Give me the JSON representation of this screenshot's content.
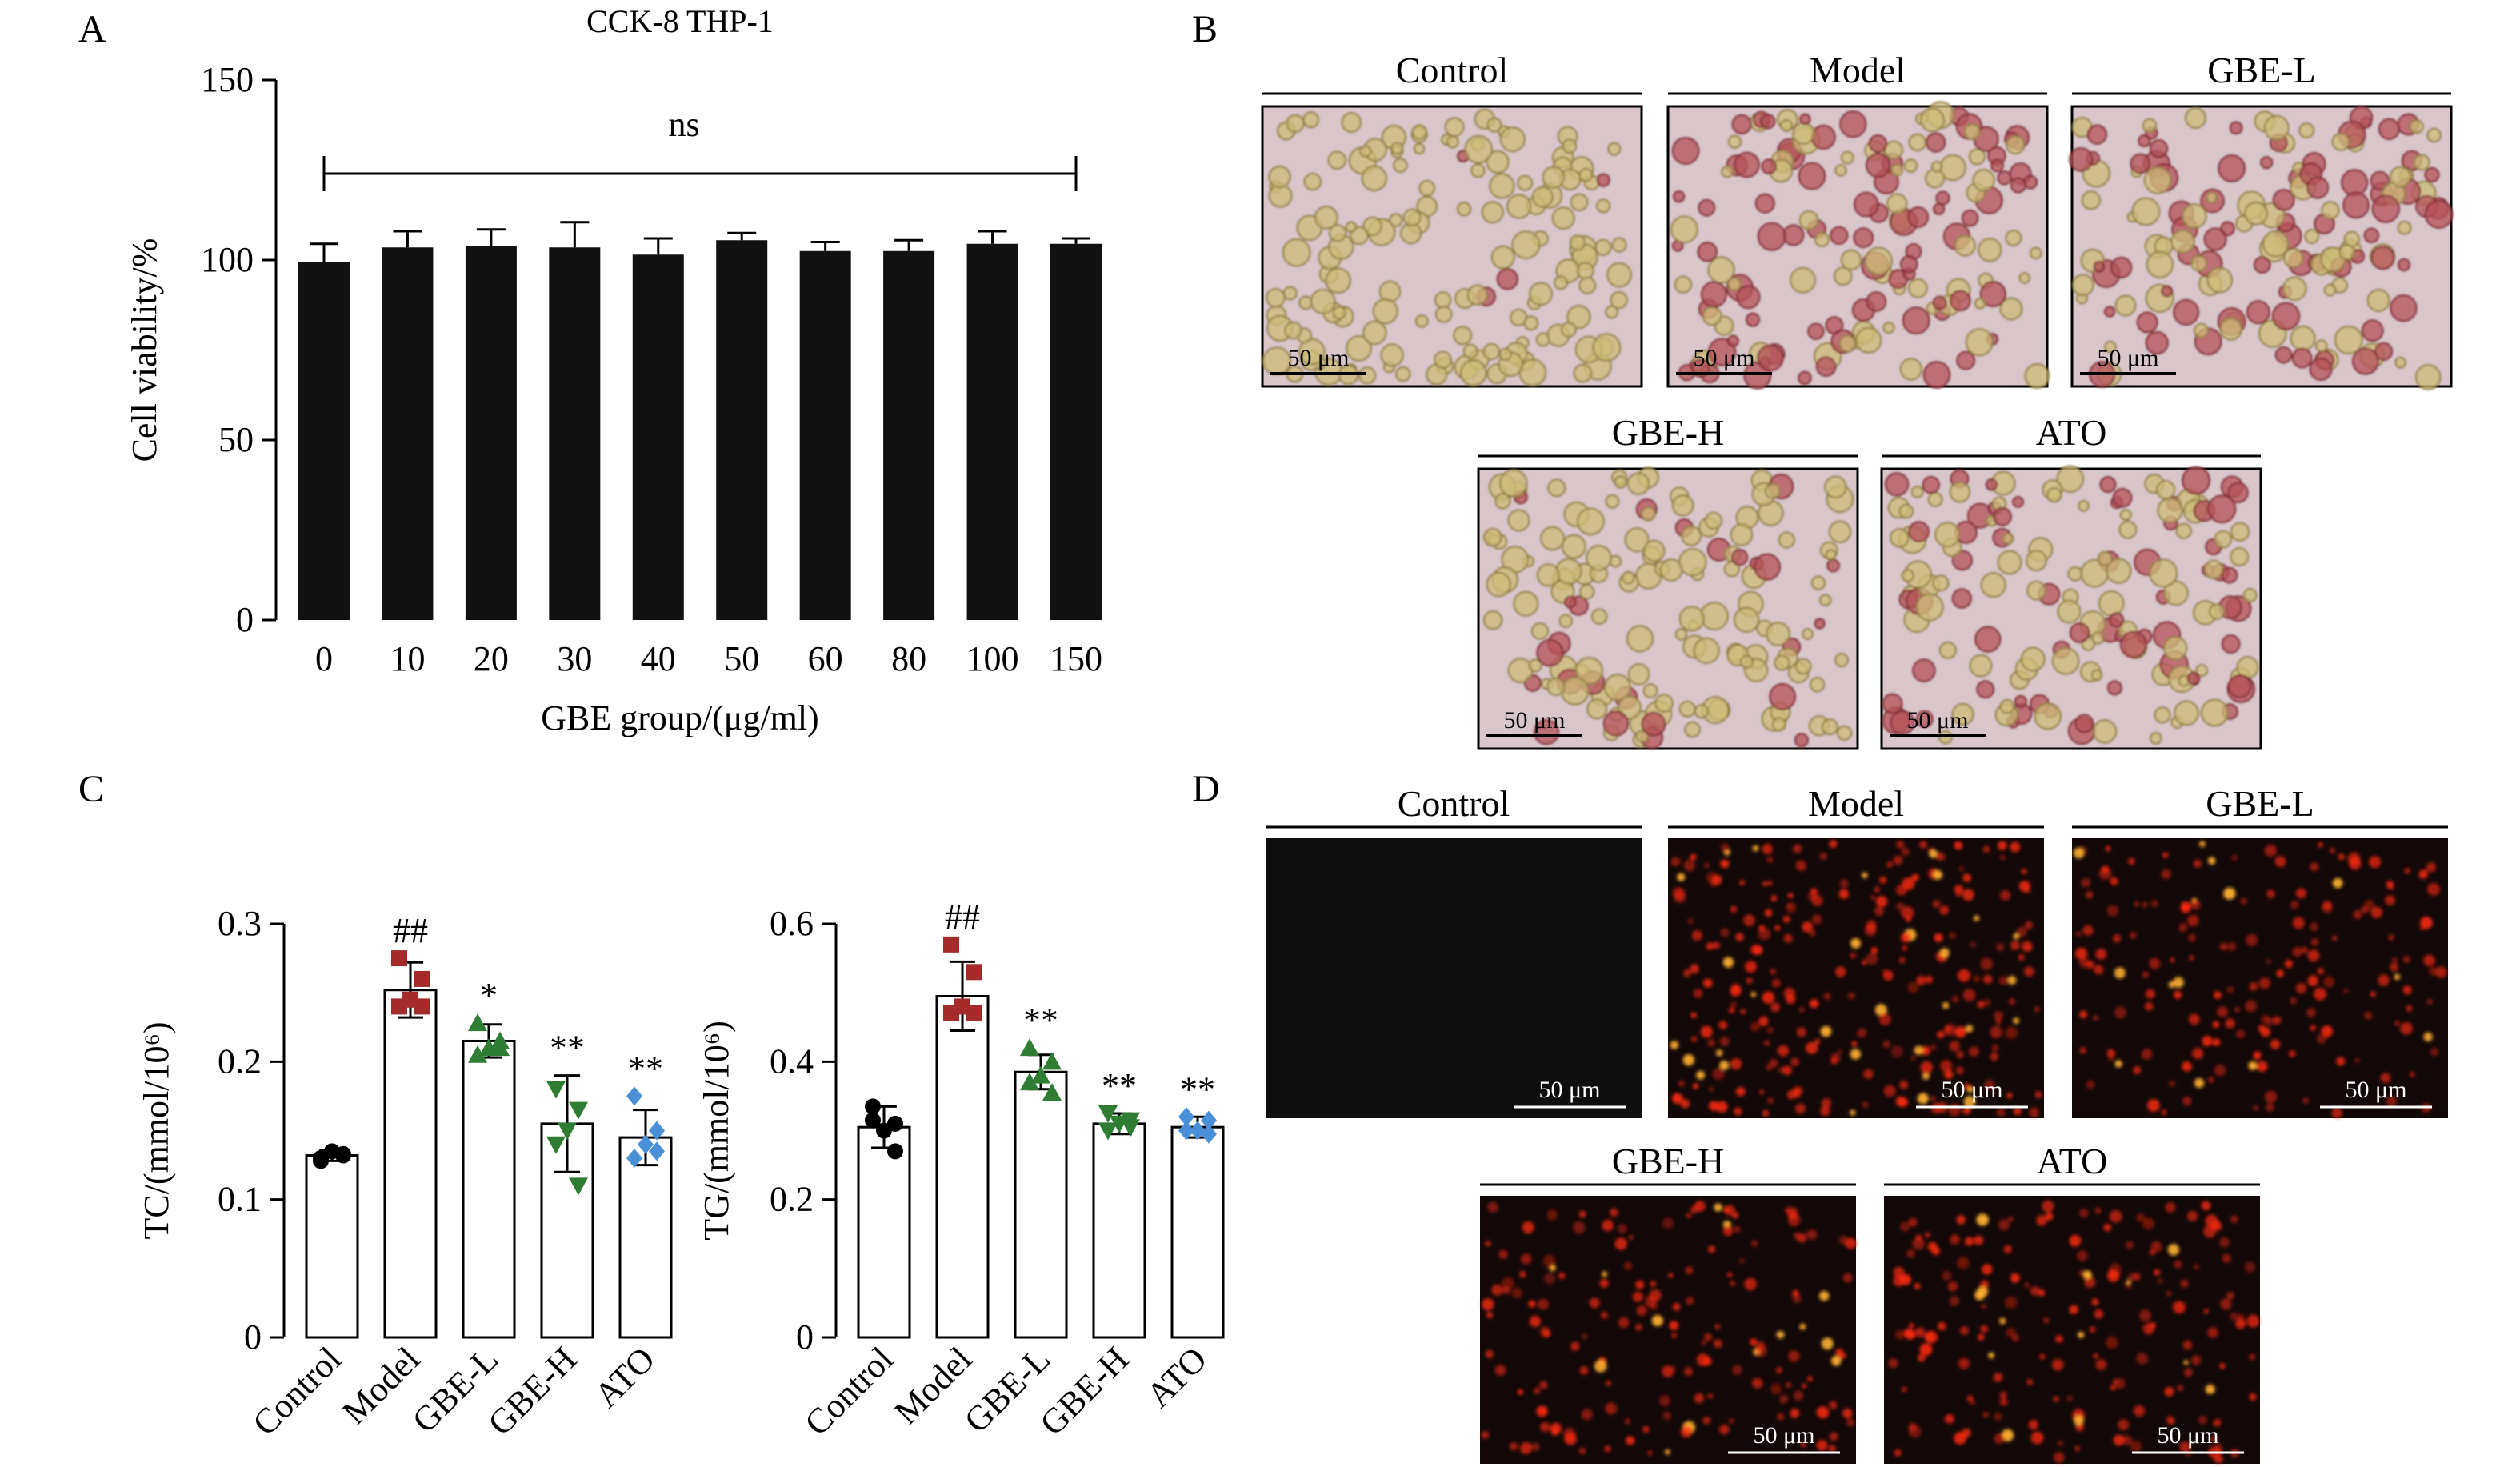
{
  "panels": {
    "A": "A",
    "B": "B",
    "C": "C",
    "D": "D"
  },
  "scale_bar_label": "50 μm",
  "micrographs": {
    "bright_field": [
      "Control",
      "Model",
      "GBE-L",
      "GBE-H",
      "ATO"
    ],
    "fluorescence": [
      "Control",
      "Model",
      "GBE-L",
      "GBE-H",
      "ATO"
    ]
  },
  "colors": {
    "bar": "#111111",
    "control": "#000000",
    "model": "#a52a2a",
    "gbe_l": "#2e7d32",
    "gbe_h": "#2e7d32",
    "ato": "#4a90d9",
    "bright_field_bg": "#d8c6cb",
    "fluorescence_bg": "#120808",
    "fluorescence_dot": "#ff2a10"
  },
  "chart_data": [
    {
      "type": "bar",
      "title": "CCK-8 THP-1",
      "xlabel": "GBE group/(μg/ml)",
      "ylabel": "Cell viability/%",
      "categories": [
        "0",
        "10",
        "20",
        "30",
        "40",
        "50",
        "60",
        "80",
        "100",
        "150"
      ],
      "values": [
        99.5,
        103.5,
        104,
        103.5,
        101.5,
        105.5,
        102.5,
        102.5,
        104.5,
        104.5
      ],
      "errors": [
        5,
        4.5,
        4.5,
        7,
        4.5,
        2,
        2.5,
        3,
        3.5,
        1.5
      ],
      "ylim": [
        0,
        150
      ],
      "yticks": [
        0,
        50,
        100,
        150
      ],
      "annotation": "ns"
    },
    {
      "type": "bar",
      "xlabel": "",
      "ylabel": "TC/(mmol/10⁶)",
      "categories": [
        "Control",
        "Model",
        "GBE-L",
        "GBE-H",
        "ATO"
      ],
      "values": [
        0.132,
        0.252,
        0.215,
        0.155,
        0.145
      ],
      "errors": [
        0.004,
        0.02,
        0.012,
        0.035,
        0.02
      ],
      "ylim": [
        0,
        0.3
      ],
      "yticks": [
        0,
        0.1,
        0.2,
        0.3
      ],
      "significance": [
        "",
        "##",
        "*",
        "**",
        "**"
      ],
      "points": [
        [
          0.13,
          0.132,
          0.135,
          0.128,
          0.133
        ],
        [
          0.275,
          0.26,
          0.245,
          0.24,
          0.24
        ],
        [
          0.228,
          0.215,
          0.21,
          0.205,
          0.21
        ],
        [
          0.18,
          0.165,
          0.15,
          0.14,
          0.11
        ],
        [
          0.175,
          0.15,
          0.14,
          0.13,
          0.135
        ]
      ]
    },
    {
      "type": "bar",
      "xlabel": "",
      "ylabel": "TG/(mmol/10⁶)",
      "categories": [
        "Control",
        "Model",
        "GBE-L",
        "GBE-H",
        "ATO"
      ],
      "values": [
        0.305,
        0.495,
        0.385,
        0.31,
        0.305
      ],
      "errors": [
        0.03,
        0.05,
        0.025,
        0.015,
        0.015
      ],
      "ylim": [
        0,
        0.6
      ],
      "yticks": [
        0,
        0.2,
        0.4,
        0.6
      ],
      "significance": [
        "",
        "##",
        "**",
        "**",
        "**"
      ],
      "points": [
        [
          0.335,
          0.31,
          0.3,
          0.315,
          0.27
        ],
        [
          0.57,
          0.53,
          0.48,
          0.47,
          0.47
        ],
        [
          0.42,
          0.4,
          0.38,
          0.37,
          0.355
        ],
        [
          0.325,
          0.315,
          0.31,
          0.3,
          0.305
        ],
        [
          0.32,
          0.315,
          0.3,
          0.3,
          0.295
        ]
      ]
    }
  ]
}
